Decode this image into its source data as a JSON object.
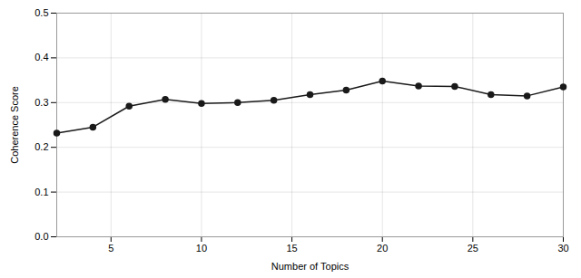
{
  "chart_data": {
    "type": "line",
    "x": [
      2,
      4,
      6,
      8,
      10,
      12,
      14,
      16,
      18,
      20,
      22,
      24,
      26,
      28,
      30
    ],
    "values": [
      0.232,
      0.245,
      0.292,
      0.307,
      0.298,
      0.3,
      0.305,
      0.318,
      0.328,
      0.348,
      0.337,
      0.336,
      0.318,
      0.315,
      0.335
    ],
    "xlabel": "Number of Topics",
    "ylabel": "Coherence Score",
    "xlim": [
      2,
      30
    ],
    "ylim": [
      0.0,
      0.5
    ],
    "xticks": [
      5,
      10,
      15,
      20,
      25,
      30
    ],
    "yticks": [
      {
        "value": 0.0,
        "label": "0.0"
      },
      0.1,
      0.2,
      0.3,
      0.4,
      0.5
    ],
    "color": "#1a1a1a",
    "marker": "circle",
    "grid": true
  }
}
